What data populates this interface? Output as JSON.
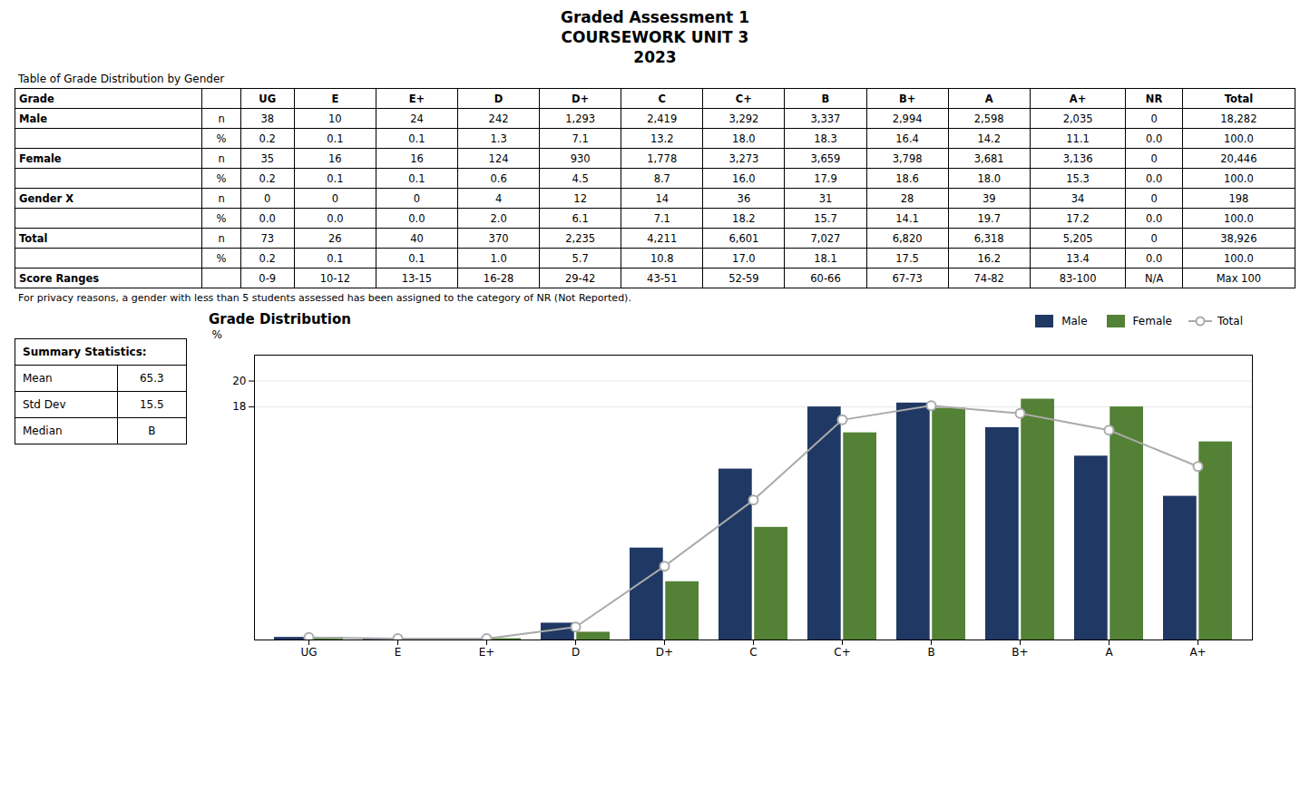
{
  "title": [
    "Graded Assessment 1",
    "COURSEWORK UNIT 3",
    "2023"
  ],
  "table": {
    "title": "Table of Grade Distribution by Gender",
    "header": [
      "Grade",
      "",
      "UG",
      "E",
      "E+",
      "D",
      "D+",
      "C",
      "C+",
      "B",
      "B+",
      "A",
      "A+",
      "NR",
      "Total"
    ],
    "rows": [
      [
        "Male",
        "n",
        "38",
        "10",
        "24",
        "242",
        "1,293",
        "2,419",
        "3,292",
        "3,337",
        "2,994",
        "2,598",
        "2,035",
        "0",
        "18,282"
      ],
      [
        "",
        "%",
        "0.2",
        "0.1",
        "0.1",
        "1.3",
        "7.1",
        "13.2",
        "18.0",
        "18.3",
        "16.4",
        "14.2",
        "11.1",
        "0.0",
        "100.0"
      ],
      [
        "Female",
        "n",
        "35",
        "16",
        "16",
        "124",
        "930",
        "1,778",
        "3,273",
        "3,659",
        "3,798",
        "3,681",
        "3,136",
        "0",
        "20,446"
      ],
      [
        "",
        "%",
        "0.2",
        "0.1",
        "0.1",
        "0.6",
        "4.5",
        "8.7",
        "16.0",
        "17.9",
        "18.6",
        "18.0",
        "15.3",
        "0.0",
        "100.0"
      ],
      [
        "Gender X",
        "n",
        "0",
        "0",
        "0",
        "4",
        "12",
        "14",
        "36",
        "31",
        "28",
        "39",
        "34",
        "0",
        "198"
      ],
      [
        "",
        "%",
        "0.0",
        "0.0",
        "0.0",
        "2.0",
        "6.1",
        "7.1",
        "18.2",
        "15.7",
        "14.1",
        "19.7",
        "17.2",
        "0.0",
        "100.0"
      ],
      [
        "Total",
        "n",
        "73",
        "26",
        "40",
        "370",
        "2,235",
        "4,211",
        "6,601",
        "7,027",
        "6,820",
        "6,318",
        "5,205",
        "0",
        "38,926"
      ],
      [
        "",
        "%",
        "0.2",
        "0.1",
        "0.1",
        "1.0",
        "5.7",
        "10.8",
        "17.0",
        "18.1",
        "17.5",
        "16.2",
        "13.4",
        "0.0",
        "100.0"
      ],
      [
        "Score Ranges",
        "",
        "0-9",
        "10-12",
        "13-15",
        "16-28",
        "29-42",
        "43-51",
        "52-59",
        "60-66",
        "67-73",
        "74-82",
        "83-100",
        "N/A",
        "Max 100"
      ]
    ],
    "footnote": "For  privacy reasons, a gender with less than 5 students assessed has been assigned to the category of NR (Not Reported)."
  },
  "summary": {
    "title": "Summary Statistics:",
    "rows": [
      [
        "Mean",
        "65.3"
      ],
      [
        "Std Dev",
        "15.5"
      ],
      [
        "Median",
        "B"
      ]
    ]
  },
  "chart_data": {
    "type": "bar",
    "title": "Grade Distribution",
    "ylabel": "%",
    "categories": [
      "UG",
      "E",
      "E+",
      "D",
      "D+",
      "C",
      "C+",
      "B",
      "B+",
      "A",
      "A+"
    ],
    "series": [
      {
        "name": "Male",
        "color": "#1F3864",
        "values": [
          0.2,
          0.1,
          0.1,
          1.3,
          7.1,
          13.2,
          18.0,
          18.3,
          16.4,
          14.2,
          11.1
        ]
      },
      {
        "name": "Female",
        "color": "#538135",
        "values": [
          0.2,
          0.1,
          0.1,
          0.6,
          4.5,
          8.7,
          16.0,
          17.9,
          18.6,
          18.0,
          15.3
        ]
      },
      {
        "name": "Total",
        "type": "line",
        "marker": "o",
        "color": "#AAAAAA",
        "values": [
          0.2,
          0.1,
          0.1,
          1.0,
          5.7,
          10.8,
          17.0,
          18.1,
          17.5,
          16.2,
          13.4
        ]
      }
    ],
    "ylim": [
      0,
      22
    ],
    "yticks": [
      18,
      20
    ],
    "grid": true,
    "legend": "upper right"
  }
}
